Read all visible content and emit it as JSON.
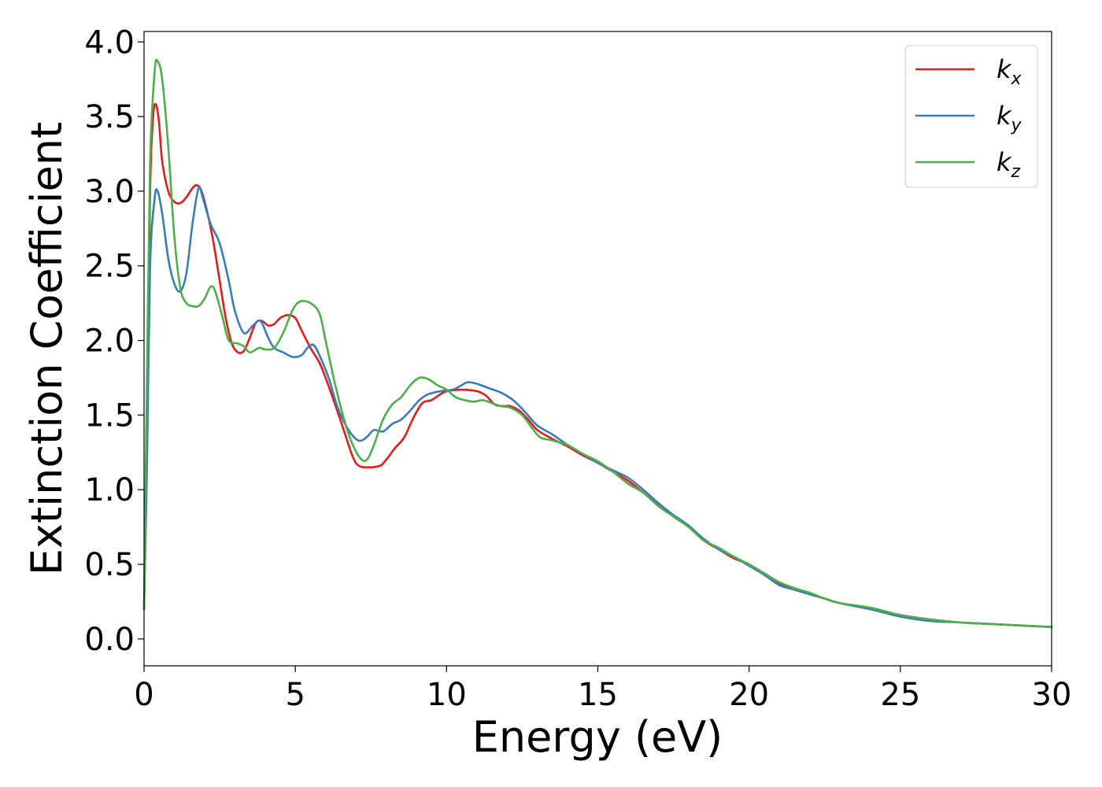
{
  "chart_data": {
    "type": "line",
    "xlabel": "Energy (eV)",
    "ylabel": "Extinction Coefficient",
    "xlim": [
      0,
      30
    ],
    "ylim": [
      -0.18,
      4.07
    ],
    "xticks": [
      0,
      5,
      10,
      15,
      20,
      25,
      30
    ],
    "yticks": [
      0.0,
      0.5,
      1.0,
      1.5,
      2.0,
      2.5,
      3.0,
      3.5,
      4.0
    ],
    "xtick_labels": [
      "0",
      "5",
      "10",
      "15",
      "20",
      "25",
      "30"
    ],
    "ytick_labels": [
      "0.0",
      "0.5",
      "1.0",
      "1.5",
      "2.0",
      "2.5",
      "3.0",
      "3.5",
      "4.0"
    ],
    "grid": false,
    "legend_position": "top-right",
    "series": [
      {
        "name": "k_x",
        "label_base": "k",
        "label_sub": "x",
        "color": "#e41a1c",
        "points": [
          [
            0,
            0.2
          ],
          [
            0.1,
            1.5
          ],
          [
            0.2,
            3.0
          ],
          [
            0.3,
            3.5
          ],
          [
            0.4,
            3.58
          ],
          [
            0.5,
            3.45
          ],
          [
            0.6,
            3.2
          ],
          [
            0.8,
            3.0
          ],
          [
            1.0,
            2.93
          ],
          [
            1.2,
            2.92
          ],
          [
            1.4,
            2.96
          ],
          [
            1.6,
            3.02
          ],
          [
            1.75,
            3.04
          ],
          [
            1.9,
            3.0
          ],
          [
            2.1,
            2.85
          ],
          [
            2.3,
            2.65
          ],
          [
            2.5,
            2.4
          ],
          [
            2.7,
            2.15
          ],
          [
            2.9,
            1.98
          ],
          [
            3.1,
            1.92
          ],
          [
            3.3,
            1.93
          ],
          [
            3.5,
            2.02
          ],
          [
            3.7,
            2.12
          ],
          [
            3.9,
            2.13
          ],
          [
            4.1,
            2.1
          ],
          [
            4.3,
            2.11
          ],
          [
            4.5,
            2.15
          ],
          [
            4.75,
            2.17
          ],
          [
            5.0,
            2.15
          ],
          [
            5.2,
            2.07
          ],
          [
            5.5,
            1.95
          ],
          [
            5.8,
            1.85
          ],
          [
            6.0,
            1.75
          ],
          [
            6.3,
            1.58
          ],
          [
            6.6,
            1.4
          ],
          [
            6.9,
            1.22
          ],
          [
            7.1,
            1.16
          ],
          [
            7.4,
            1.15
          ],
          [
            7.8,
            1.16
          ],
          [
            8.0,
            1.2
          ],
          [
            8.3,
            1.28
          ],
          [
            8.6,
            1.35
          ],
          [
            8.9,
            1.48
          ],
          [
            9.2,
            1.58
          ],
          [
            9.5,
            1.6
          ],
          [
            9.8,
            1.64
          ],
          [
            10.0,
            1.66
          ],
          [
            10.5,
            1.67
          ],
          [
            11.0,
            1.66
          ],
          [
            11.3,
            1.63
          ],
          [
            11.6,
            1.57
          ],
          [
            11.9,
            1.56
          ],
          [
            12.1,
            1.56
          ],
          [
            12.4,
            1.53
          ],
          [
            12.7,
            1.47
          ],
          [
            13.0,
            1.4
          ],
          [
            13.5,
            1.34
          ],
          [
            14.0,
            1.29
          ],
          [
            14.5,
            1.23
          ],
          [
            15.0,
            1.18
          ],
          [
            15.5,
            1.12
          ],
          [
            16.0,
            1.06
          ],
          [
            16.5,
            0.98
          ],
          [
            17.0,
            0.9
          ],
          [
            17.5,
            0.82
          ],
          [
            18.0,
            0.75
          ],
          [
            18.5,
            0.66
          ],
          [
            19.0,
            0.6
          ],
          [
            19.5,
            0.54
          ],
          [
            20.0,
            0.5
          ],
          [
            20.5,
            0.43
          ],
          [
            21.0,
            0.37
          ],
          [
            21.5,
            0.33
          ],
          [
            22.0,
            0.3
          ],
          [
            22.5,
            0.27
          ],
          [
            23.0,
            0.24
          ],
          [
            24.0,
            0.2
          ],
          [
            25.0,
            0.16
          ],
          [
            26.0,
            0.13
          ],
          [
            27.0,
            0.11
          ],
          [
            28.0,
            0.1
          ],
          [
            29.0,
            0.09
          ],
          [
            30.0,
            0.08
          ]
        ]
      },
      {
        "name": "k_y",
        "label_base": "k",
        "label_sub": "y",
        "color": "#377eb8",
        "points": [
          [
            0,
            0.2
          ],
          [
            0.1,
            1.2
          ],
          [
            0.2,
            2.5
          ],
          [
            0.35,
            2.95
          ],
          [
            0.45,
            3.0
          ],
          [
            0.6,
            2.85
          ],
          [
            0.8,
            2.55
          ],
          [
            1.0,
            2.38
          ],
          [
            1.2,
            2.33
          ],
          [
            1.4,
            2.45
          ],
          [
            1.6,
            2.78
          ],
          [
            1.8,
            3.02
          ],
          [
            1.95,
            2.95
          ],
          [
            2.2,
            2.78
          ],
          [
            2.5,
            2.65
          ],
          [
            2.8,
            2.4
          ],
          [
            3.0,
            2.2
          ],
          [
            3.3,
            2.05
          ],
          [
            3.6,
            2.1
          ],
          [
            3.85,
            2.13
          ],
          [
            4.1,
            2.02
          ],
          [
            4.3,
            1.95
          ],
          [
            4.6,
            1.92
          ],
          [
            4.9,
            1.89
          ],
          [
            5.2,
            1.9
          ],
          [
            5.4,
            1.95
          ],
          [
            5.6,
            1.97
          ],
          [
            5.8,
            1.9
          ],
          [
            6.1,
            1.75
          ],
          [
            6.4,
            1.55
          ],
          [
            6.7,
            1.42
          ],
          [
            7.0,
            1.34
          ],
          [
            7.2,
            1.33
          ],
          [
            7.4,
            1.36
          ],
          [
            7.6,
            1.4
          ],
          [
            7.9,
            1.39
          ],
          [
            8.2,
            1.44
          ],
          [
            8.5,
            1.47
          ],
          [
            8.8,
            1.53
          ],
          [
            9.1,
            1.6
          ],
          [
            9.4,
            1.64
          ],
          [
            9.8,
            1.66
          ],
          [
            10.2,
            1.67
          ],
          [
            10.5,
            1.7
          ],
          [
            10.7,
            1.72
          ],
          [
            11.0,
            1.71
          ],
          [
            11.4,
            1.68
          ],
          [
            11.8,
            1.65
          ],
          [
            12.2,
            1.6
          ],
          [
            12.6,
            1.52
          ],
          [
            13.0,
            1.43
          ],
          [
            13.5,
            1.37
          ],
          [
            14.0,
            1.3
          ],
          [
            14.5,
            1.24
          ],
          [
            15.0,
            1.18
          ],
          [
            15.5,
            1.13
          ],
          [
            16.0,
            1.08
          ],
          [
            16.5,
            1.0
          ],
          [
            17.0,
            0.91
          ],
          [
            17.5,
            0.83
          ],
          [
            18.0,
            0.76
          ],
          [
            18.5,
            0.67
          ],
          [
            19.0,
            0.6
          ],
          [
            19.5,
            0.55
          ],
          [
            20.0,
            0.49
          ],
          [
            20.5,
            0.43
          ],
          [
            21.0,
            0.36
          ],
          [
            21.5,
            0.33
          ],
          [
            22.0,
            0.3
          ],
          [
            22.5,
            0.27
          ],
          [
            23.0,
            0.24
          ],
          [
            24.0,
            0.2
          ],
          [
            25.0,
            0.15
          ],
          [
            26.0,
            0.12
          ],
          [
            27.0,
            0.11
          ],
          [
            28.0,
            0.1
          ],
          [
            29.0,
            0.09
          ],
          [
            30.0,
            0.08
          ]
        ]
      },
      {
        "name": "k_z",
        "label_base": "k",
        "label_sub": "z",
        "color": "#4daf4a",
        "points": [
          [
            0,
            0.2
          ],
          [
            0.1,
            1.8
          ],
          [
            0.2,
            3.2
          ],
          [
            0.35,
            3.8
          ],
          [
            0.45,
            3.87
          ],
          [
            0.6,
            3.75
          ],
          [
            0.8,
            3.3
          ],
          [
            1.0,
            2.7
          ],
          [
            1.2,
            2.35
          ],
          [
            1.4,
            2.25
          ],
          [
            1.6,
            2.23
          ],
          [
            1.8,
            2.23
          ],
          [
            2.0,
            2.28
          ],
          [
            2.2,
            2.36
          ],
          [
            2.35,
            2.33
          ],
          [
            2.6,
            2.15
          ],
          [
            2.8,
            2.0
          ],
          [
            3.1,
            1.98
          ],
          [
            3.3,
            1.96
          ],
          [
            3.5,
            1.92
          ],
          [
            3.8,
            1.95
          ],
          [
            4.0,
            1.94
          ],
          [
            4.3,
            1.95
          ],
          [
            4.6,
            2.05
          ],
          [
            4.9,
            2.2
          ],
          [
            5.15,
            2.26
          ],
          [
            5.5,
            2.25
          ],
          [
            5.8,
            2.18
          ],
          [
            6.0,
            2.0
          ],
          [
            6.3,
            1.72
          ],
          [
            6.6,
            1.48
          ],
          [
            6.9,
            1.3
          ],
          [
            7.2,
            1.2
          ],
          [
            7.4,
            1.21
          ],
          [
            7.6,
            1.3
          ],
          [
            7.9,
            1.47
          ],
          [
            8.2,
            1.57
          ],
          [
            8.5,
            1.62
          ],
          [
            8.8,
            1.7
          ],
          [
            9.1,
            1.75
          ],
          [
            9.4,
            1.74
          ],
          [
            9.7,
            1.7
          ],
          [
            10.0,
            1.67
          ],
          [
            10.3,
            1.62
          ],
          [
            10.6,
            1.6
          ],
          [
            10.9,
            1.59
          ],
          [
            11.2,
            1.6
          ],
          [
            11.5,
            1.58
          ],
          [
            11.8,
            1.56
          ],
          [
            12.1,
            1.55
          ],
          [
            12.5,
            1.5
          ],
          [
            12.8,
            1.42
          ],
          [
            13.1,
            1.35
          ],
          [
            13.5,
            1.33
          ],
          [
            14.0,
            1.3
          ],
          [
            14.5,
            1.24
          ],
          [
            15.0,
            1.19
          ],
          [
            15.5,
            1.12
          ],
          [
            16.0,
            1.04
          ],
          [
            16.5,
            0.98
          ],
          [
            17.0,
            0.89
          ],
          [
            17.5,
            0.82
          ],
          [
            18.0,
            0.75
          ],
          [
            18.5,
            0.66
          ],
          [
            19.0,
            0.61
          ],
          [
            19.5,
            0.55
          ],
          [
            20.0,
            0.5
          ],
          [
            20.5,
            0.44
          ],
          [
            21.0,
            0.38
          ],
          [
            21.5,
            0.34
          ],
          [
            22.0,
            0.31
          ],
          [
            22.5,
            0.27
          ],
          [
            23.0,
            0.24
          ],
          [
            24.0,
            0.21
          ],
          [
            25.0,
            0.16
          ],
          [
            26.0,
            0.13
          ],
          [
            27.0,
            0.11
          ],
          [
            28.0,
            0.1
          ],
          [
            29.0,
            0.09
          ],
          [
            30.0,
            0.08
          ]
        ]
      }
    ]
  }
}
